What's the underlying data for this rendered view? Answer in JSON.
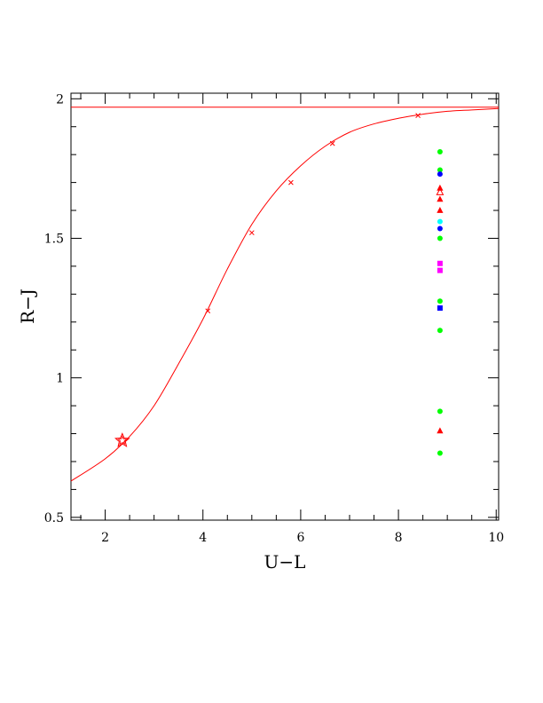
{
  "chart_data": {
    "type": "scatter",
    "xlabel": "U−L",
    "ylabel": "R−J",
    "xlim": [
      1.3,
      10.05
    ],
    "ylim": [
      0.49,
      2.02
    ],
    "xticks_major": [
      2,
      4,
      6,
      8,
      10
    ],
    "xtick_labels": [
      "2",
      "4",
      "6",
      "8",
      "10"
    ],
    "yticks_major": [
      0.5,
      1,
      1.5,
      2
    ],
    "ytick_labels": [
      "0.5",
      "1",
      "1.5",
      "2"
    ],
    "grid": false,
    "legend": "none",
    "colors": {
      "curve": "#ff0000",
      "green": "#00ff00",
      "blue": "#0000ff",
      "red": "#ff0000",
      "cyan": "#00ffff",
      "magenta": "#ff00ff"
    },
    "horizontal_line": {
      "y": 1.97
    },
    "curve": {
      "x": [
        1.3,
        2.0,
        2.5,
        3.0,
        3.5,
        4.0,
        4.5,
        5.0,
        5.5,
        6.0,
        6.5,
        7.0,
        7.5,
        8.0,
        8.5,
        9.0,
        9.5,
        10.05
      ],
      "y": [
        0.63,
        0.71,
        0.79,
        0.9,
        1.05,
        1.21,
        1.39,
        1.55,
        1.67,
        1.76,
        1.83,
        1.88,
        1.91,
        1.93,
        1.945,
        1.955,
        1.96,
        1.965
      ]
    },
    "curve_markers": {
      "x": [
        4.1,
        5.0,
        5.8,
        6.65,
        8.4
      ],
      "y": [
        1.24,
        1.52,
        1.7,
        1.84,
        1.94
      ]
    },
    "star": {
      "x": 2.35,
      "y": 0.775
    },
    "points": [
      {
        "x": 8.85,
        "y": 1.81,
        "shape": "circle",
        "color": "green"
      },
      {
        "x": 8.85,
        "y": 1.745,
        "shape": "circle",
        "color": "green"
      },
      {
        "x": 8.85,
        "y": 1.73,
        "shape": "circle",
        "color": "blue"
      },
      {
        "x": 8.85,
        "y": 1.68,
        "shape": "triangle",
        "color": "red"
      },
      {
        "x": 8.85,
        "y": 1.665,
        "shape": "triangle-open",
        "color": "red"
      },
      {
        "x": 8.85,
        "y": 1.64,
        "shape": "triangle",
        "color": "red"
      },
      {
        "x": 8.85,
        "y": 1.6,
        "shape": "triangle",
        "color": "red"
      },
      {
        "x": 8.85,
        "y": 1.56,
        "shape": "circle",
        "color": "cyan"
      },
      {
        "x": 8.85,
        "y": 1.535,
        "shape": "circle",
        "color": "blue"
      },
      {
        "x": 8.85,
        "y": 1.5,
        "shape": "circle",
        "color": "green"
      },
      {
        "x": 8.85,
        "y": 1.41,
        "shape": "square",
        "color": "magenta"
      },
      {
        "x": 8.85,
        "y": 1.385,
        "shape": "square",
        "color": "magenta"
      },
      {
        "x": 8.85,
        "y": 1.275,
        "shape": "circle",
        "color": "green"
      },
      {
        "x": 8.85,
        "y": 1.25,
        "shape": "square",
        "color": "blue"
      },
      {
        "x": 8.85,
        "y": 1.17,
        "shape": "circle",
        "color": "green"
      },
      {
        "x": 8.85,
        "y": 0.88,
        "shape": "circle",
        "color": "green"
      },
      {
        "x": 8.85,
        "y": 0.81,
        "shape": "triangle",
        "color": "red"
      },
      {
        "x": 8.85,
        "y": 0.73,
        "shape": "circle",
        "color": "green"
      }
    ]
  }
}
